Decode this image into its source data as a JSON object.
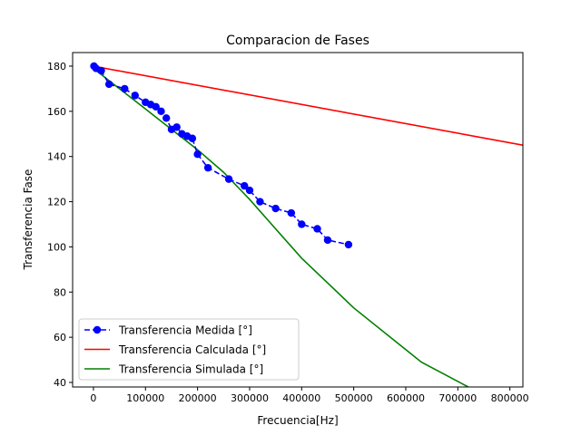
{
  "chart_data": {
    "type": "line",
    "title": "Comparacion de Fases",
    "xlabel": "Frecuencia[Hz]",
    "ylabel": "Transferencia Fase",
    "xlim": [
      -40000,
      825000
    ],
    "ylim": [
      38,
      186
    ],
    "x_ticks": [
      0,
      100000,
      200000,
      300000,
      400000,
      500000,
      600000,
      700000,
      800000
    ],
    "y_ticks": [
      40,
      60,
      80,
      100,
      120,
      140,
      160,
      180
    ],
    "grid": false,
    "legend_position": "lower-left",
    "series": [
      {
        "name": "Transferencia Medida [°]",
        "color": "#0000ff",
        "style": "dashed-with-markers",
        "x": [
          1000,
          5000,
          15000,
          30000,
          60000,
          80000,
          100000,
          110000,
          120000,
          130000,
          140000,
          150000,
          160000,
          170000,
          180000,
          190000,
          200000,
          220000,
          260000,
          290000,
          300000,
          320000,
          350000,
          380000,
          400000,
          430000,
          450000,
          490000
        ],
        "y": [
          180,
          179,
          178,
          172,
          170,
          167,
          164,
          163,
          162,
          160,
          157,
          152,
          153,
          150,
          149,
          148,
          141,
          135,
          130,
          127,
          125,
          120,
          117,
          115,
          110,
          108,
          103,
          101
        ]
      },
      {
        "name": "Transferencia Calculada [°]",
        "color": "#ff0000",
        "style": "solid",
        "x": [
          0,
          825000
        ],
        "y": [
          180,
          145
        ]
      },
      {
        "name": "Transferencia Simulada [°]",
        "color": "#008000",
        "style": "solid",
        "x": [
          0,
          50000,
          100000,
          150000,
          200000,
          250000,
          300000,
          350000,
          400000,
          450000,
          500000,
          630000,
          720000
        ],
        "y": [
          179,
          170,
          161,
          152,
          143,
          133,
          121,
          108,
          95,
          84,
          73,
          49,
          38
        ]
      }
    ]
  }
}
